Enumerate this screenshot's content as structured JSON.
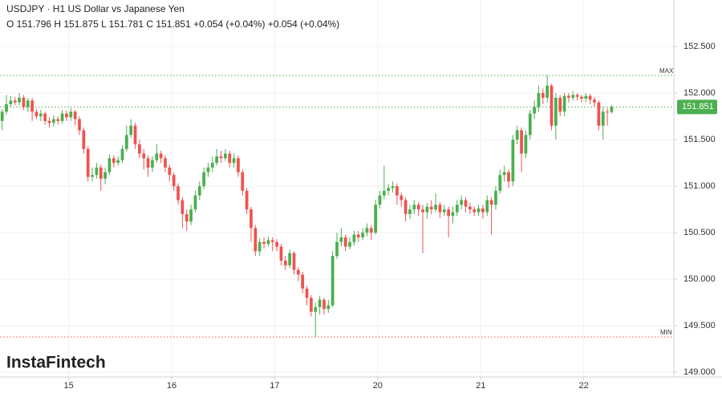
{
  "chart_data": {
    "type": "candlestick",
    "title": "USDJPY · H1 US Dollar vs Japanese Yen",
    "ohlc_text": "O 151.796 H 151.875 L 151.781 C 151.851 +0.054 (+0.04%) +0.054 (+0.04%)",
    "brand": "InstaFintech",
    "up_color": "#4caf50",
    "down_color": "#ef5350",
    "grid": true,
    "ylim": [
      148.95,
      153.0
    ],
    "yticks": [
      {
        "value": 149.0,
        "label": "149.000"
      },
      {
        "value": 149.5,
        "label": "149.500"
      },
      {
        "value": 150.0,
        "label": "150.000"
      },
      {
        "value": 150.5,
        "label": "150.500"
      },
      {
        "value": 151.0,
        "label": "151.000"
      },
      {
        "value": 151.5,
        "label": "151.500"
      },
      {
        "value": 152.0,
        "label": "152.000"
      },
      {
        "value": 152.5,
        "label": "152.500"
      }
    ],
    "xlim": [
      -0.5,
      156.5
    ],
    "xticks": [
      {
        "value": 15.5,
        "label": "15"
      },
      {
        "value": 39.5,
        "label": "16"
      },
      {
        "value": 63.5,
        "label": "17"
      },
      {
        "value": 87.5,
        "label": "20"
      },
      {
        "value": 111.5,
        "label": "21"
      },
      {
        "value": 135.5,
        "label": "22"
      }
    ],
    "last_price": {
      "value": 151.851,
      "label": "151.851"
    },
    "max_line": {
      "value": 152.19,
      "label": "MAX"
    },
    "min_line": {
      "value": 149.38,
      "label": "MIN"
    },
    "open": [
      151.7,
      151.8,
      151.88,
      151.92,
      151.9,
      151.95,
      151.85,
      151.92,
      151.8,
      151.75,
      151.78,
      151.7,
      151.68,
      151.72,
      151.7,
      151.78,
      151.74,
      151.8,
      151.72,
      151.6,
      151.4,
      151.1,
      151.12,
      151.2,
      151.08,
      151.15,
      151.3,
      151.25,
      151.28,
      151.4,
      151.55,
      151.65,
      151.45,
      151.35,
      151.3,
      151.2,
      151.28,
      151.35,
      151.3,
      151.2,
      151.12,
      151.0,
      150.85,
      150.7,
      150.62,
      150.75,
      150.9,
      151.0,
      151.15,
      151.2,
      151.25,
      151.32,
      151.3,
      151.35,
      151.25,
      151.3,
      151.15,
      150.95,
      150.75,
      150.55,
      150.3,
      150.4,
      150.38,
      150.42,
      150.4,
      150.35,
      150.2,
      150.15,
      150.28,
      150.1,
      150.05,
      149.9,
      149.8,
      149.65,
      149.7,
      149.78,
      149.68,
      149.72,
      150.25,
      150.4,
      150.45,
      150.35,
      150.4,
      150.48,
      150.45,
      150.5,
      150.55,
      150.5,
      150.8,
      150.9,
      150.95,
      150.98,
      151.0,
      150.9,
      150.85,
      150.7,
      150.75,
      150.8,
      150.75,
      150.72,
      150.78,
      150.75,
      150.8,
      150.72,
      150.75,
      150.68,
      150.72,
      150.8,
      150.85,
      150.78,
      150.75,
      150.72,
      150.76,
      150.72,
      150.85,
      150.8,
      150.95,
      151.12,
      151.15,
      151.05,
      151.5,
      151.6,
      151.35,
      151.55,
      151.78,
      151.85,
      152.0,
      151.95,
      152.08,
      151.65,
      151.95,
      151.8,
      151.97,
      151.95,
      151.98,
      151.96,
      151.94,
      151.97,
      151.93,
      151.9,
      151.65,
      151.8,
      151.796
    ],
    "high": [
      151.83,
      151.98,
      151.97,
      151.96,
      152.0,
      151.98,
      151.95,
      151.95,
      151.83,
      151.82,
      151.8,
      151.74,
      151.76,
      151.75,
      151.82,
      151.81,
      151.84,
      151.82,
      151.75,
      151.63,
      151.43,
      151.2,
      151.25,
      151.23,
      151.2,
      151.34,
      151.33,
      151.32,
      151.44,
      151.65,
      151.72,
      151.68,
      151.5,
      151.4,
      151.33,
      151.32,
      151.45,
      151.38,
      151.33,
      151.23,
      151.15,
      151.03,
      150.88,
      150.75,
      150.8,
      150.95,
      151.05,
      151.2,
      151.25,
      151.32,
      151.4,
      151.38,
      151.4,
      151.38,
      151.35,
      151.33,
      151.18,
      150.98,
      150.78,
      150.58,
      150.44,
      150.45,
      150.46,
      150.45,
      150.43,
      150.38,
      150.25,
      150.32,
      150.3,
      150.13,
      150.08,
      149.93,
      149.83,
      149.75,
      149.82,
      149.8,
      149.78,
      150.3,
      150.5,
      150.55,
      150.48,
      150.45,
      150.52,
      150.52,
      150.55,
      150.6,
      150.58,
      150.85,
      150.95,
      151.22,
      151.02,
      151.05,
      151.03,
      150.93,
      150.88,
      150.8,
      150.85,
      150.83,
      150.8,
      150.82,
      150.85,
      150.92,
      150.83,
      150.8,
      150.78,
      150.78,
      150.85,
      150.9,
      150.88,
      150.82,
      150.78,
      150.8,
      150.8,
      150.9,
      150.88,
      151.0,
      151.18,
      151.22,
      151.18,
      151.55,
      151.65,
      151.63,
      151.6,
      151.82,
      151.92,
      152.08,
      152.05,
      152.19,
      152.1,
      152.0,
      151.98,
      152.0,
      152.0,
      152.02,
      152.0,
      151.98,
      152.0,
      151.99,
      151.96,
      151.92,
      151.85,
      151.84,
      151.875
    ],
    "low": [
      151.6,
      151.77,
      151.85,
      151.87,
      151.87,
      151.82,
      151.8,
      151.7,
      151.72,
      151.7,
      151.66,
      151.63,
      151.64,
      151.66,
      151.67,
      151.7,
      151.7,
      151.65,
      151.55,
      151.35,
      151.05,
      151.05,
      151.08,
      150.95,
      151.02,
      151.12,
      151.2,
      151.22,
      151.25,
      151.37,
      151.52,
      151.4,
      151.3,
      151.18,
      151.1,
      151.15,
      151.25,
      151.25,
      151.15,
      151.05,
      150.95,
      150.8,
      150.55,
      150.52,
      150.58,
      150.72,
      150.85,
      150.97,
      151.1,
      151.15,
      151.22,
      151.25,
      151.27,
      151.2,
      151.2,
      151.1,
      150.9,
      150.7,
      150.4,
      150.25,
      150.25,
      150.33,
      150.35,
      150.3,
      150.3,
      150.15,
      150.1,
      150.12,
      150.05,
      149.98,
      149.85,
      149.72,
      149.6,
      149.38,
      149.62,
      149.62,
      149.64,
      149.7,
      150.22,
      150.35,
      150.3,
      150.32,
      150.36,
      150.4,
      150.42,
      150.46,
      150.42,
      150.48,
      150.76,
      150.86,
      150.9,
      150.93,
      150.8,
      150.78,
      150.62,
      150.65,
      150.7,
      150.68,
      150.28,
      150.65,
      150.7,
      150.72,
      150.66,
      150.68,
      150.45,
      150.6,
      150.68,
      150.75,
      150.72,
      150.7,
      150.68,
      150.68,
      150.65,
      150.68,
      150.48,
      150.75,
      150.92,
      151.05,
      150.98,
      151.0,
      151.45,
      151.15,
      151.3,
      151.5,
      151.72,
      151.8,
      151.88,
      151.9,
      151.6,
      151.5,
      151.75,
      151.75,
      151.9,
      151.92,
      151.92,
      151.9,
      151.9,
      151.88,
      151.85,
      151.6,
      151.5,
      151.65,
      151.781
    ],
    "close": [
      151.8,
      151.88,
      151.92,
      151.9,
      151.95,
      151.85,
      151.92,
      151.8,
      151.75,
      151.78,
      151.7,
      151.68,
      151.72,
      151.7,
      151.78,
      151.74,
      151.8,
      151.72,
      151.6,
      151.4,
      151.1,
      151.12,
      151.2,
      151.08,
      151.15,
      151.3,
      151.25,
      151.28,
      151.4,
      151.55,
      151.65,
      151.45,
      151.35,
      151.3,
      151.2,
      151.28,
      151.35,
      151.3,
      151.2,
      151.12,
      151.0,
      150.85,
      150.7,
      150.62,
      150.75,
      150.9,
      151.0,
      151.15,
      151.2,
      151.25,
      151.32,
      151.3,
      151.35,
      151.25,
      151.3,
      151.15,
      150.95,
      150.75,
      150.55,
      150.3,
      150.4,
      150.38,
      150.42,
      150.4,
      150.35,
      150.2,
      150.15,
      150.28,
      150.1,
      150.05,
      149.9,
      149.8,
      149.65,
      149.7,
      149.78,
      149.68,
      149.72,
      150.25,
      150.4,
      150.45,
      150.35,
      150.4,
      150.48,
      150.45,
      150.5,
      150.55,
      150.5,
      150.8,
      150.9,
      150.95,
      150.98,
      151.0,
      150.9,
      150.85,
      150.7,
      150.75,
      150.8,
      150.75,
      150.72,
      150.78,
      150.75,
      150.8,
      150.72,
      150.75,
      150.68,
      150.72,
      150.8,
      150.85,
      150.78,
      150.75,
      150.72,
      150.76,
      150.72,
      150.85,
      150.8,
      150.95,
      151.12,
      151.15,
      151.05,
      151.5,
      151.6,
      151.35,
      151.55,
      151.78,
      151.85,
      152.0,
      151.95,
      152.08,
      151.65,
      151.95,
      151.8,
      151.97,
      151.95,
      151.98,
      151.96,
      151.94,
      151.97,
      151.93,
      151.9,
      151.65,
      151.8,
      151.796,
      151.851
    ]
  }
}
